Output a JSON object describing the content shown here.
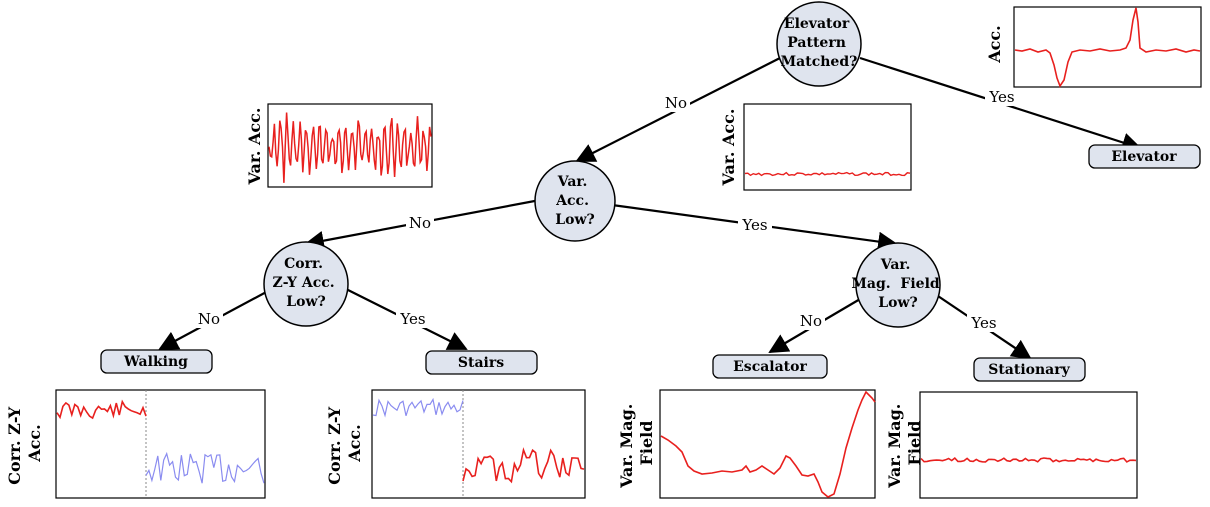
{
  "decision_nodes": {
    "elevator": [
      "Elevator",
      "Pattern",
      "Matched?"
    ],
    "var_acc": [
      "Var.",
      "Acc.",
      "Low?"
    ],
    "corr": [
      "Corr.",
      "Z-Y Acc.",
      "Low?"
    ],
    "mag": [
      "Var.",
      "Mag.  Field",
      "Low?"
    ]
  },
  "edge_labels": {
    "elev_no": "No",
    "elev_yes": "Yes",
    "acc_no": "No",
    "acc_yes": "Yes",
    "corr_no": "No",
    "corr_yes": "Yes",
    "mag_no": "No",
    "mag_yes": "Yes"
  },
  "leaves": {
    "elevator": "Elevator",
    "walking": "Walking",
    "stairs": "Stairs",
    "escalator": "Escalator",
    "stationary": "Stationary"
  },
  "plot_labels": {
    "elevator": [
      "Acc."
    ],
    "walking_var": [
      "Var. Acc."
    ],
    "stationary_var": [
      "Var. Acc."
    ],
    "walking_corr": [
      "Corr. Z-Y",
      "Acc."
    ],
    "stairs_corr": [
      "Corr. Z-Y",
      "Acc."
    ],
    "escalator_mag": [
      "Var. Mag.",
      "Field"
    ],
    "stationary_mag": [
      "Var. Mag.",
      "Field"
    ]
  },
  "colors": {
    "signal": "#e8201e",
    "signal_alt": "#8a8cf0",
    "node_fill": "#dfe4ee",
    "leaf_fill": "#dfe4ee"
  }
}
